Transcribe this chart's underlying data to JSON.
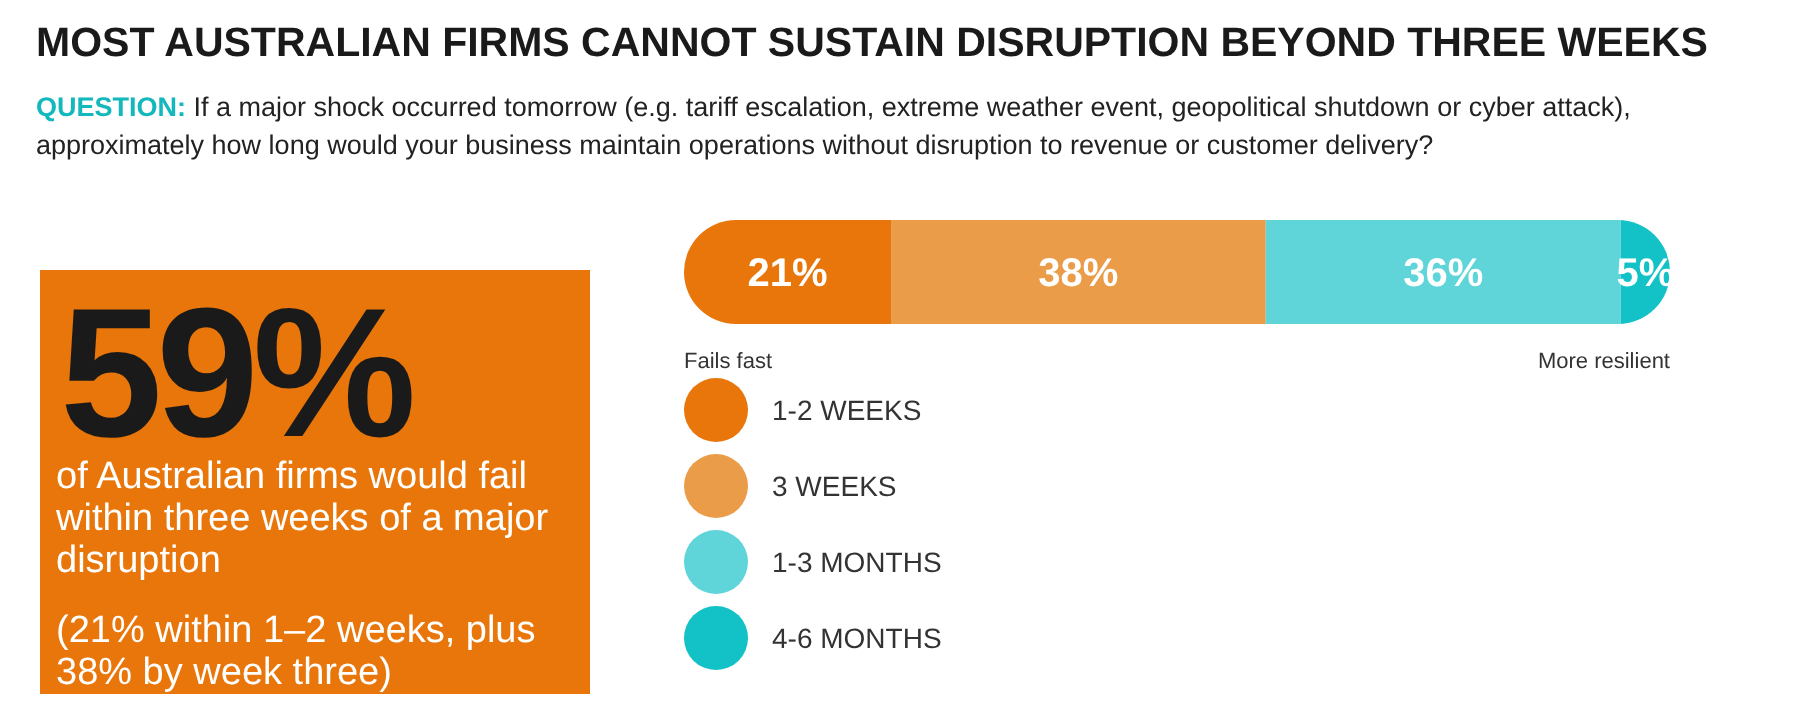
{
  "chart_data": {
    "type": "bar",
    "orientation": "horizontal",
    "stacked": true,
    "title": "MOST AUSTRALIAN FIRMS CANNOT SUSTAIN DISRUPTION BEYOND THREE WEEKS",
    "subtitle": "QUESTION: If a major shock occurred tomorrow (e.g. tariff escalation, extreme weather event, geopolitical shutdown or cyber attack), approximately how long would your business maintain operations without disruption to revenue or customer delivery?",
    "categories": [
      null
    ],
    "legend": "bottom left",
    "series": [
      {
        "name": "1-2 WEEKS",
        "color": "#e8760a",
        "values": [
          21
        ],
        "value_labels": [
          "21%"
        ]
      },
      {
        "name": "3 WEEKS",
        "color": "#eb9c48",
        "values": [
          38
        ],
        "value_labels": [
          "38%"
        ]
      },
      {
        "name": "1-3 MONTHS",
        "color": "#5fd5da",
        "values": [
          36
        ],
        "value_labels": [
          "36%"
        ]
      },
      {
        "name": "4-6 MONTHS",
        "color": "#12c2c6",
        "values": [
          5
        ],
        "value_labels": [
          "5%"
        ]
      }
    ],
    "annotations": [
      "Fails fast",
      "More resilient",
      "59%",
      "of Australian firms would fail within three weeks of a major disruption",
      "(21% within 1–2 weeks, plus 38% by week three)"
    ]
  }
}
